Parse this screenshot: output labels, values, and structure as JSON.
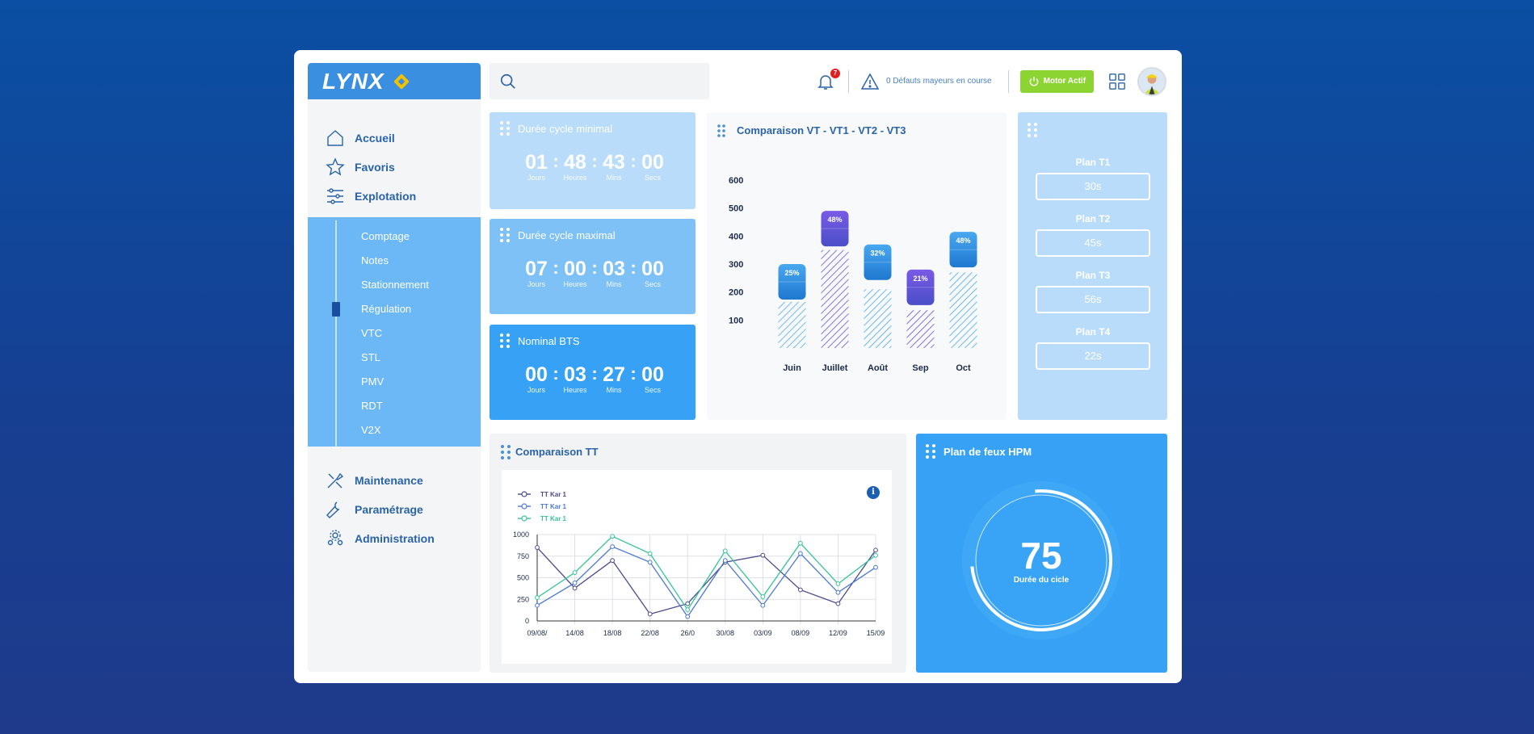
{
  "brand": {
    "name": "LYNX"
  },
  "sidebar": {
    "main": [
      {
        "label": "Accueil",
        "icon": "home-icon"
      },
      {
        "label": "Favoris",
        "icon": "star-icon"
      },
      {
        "label": "Explotation",
        "icon": "sliders-icon"
      }
    ],
    "sub": [
      "Comptage",
      "Notes",
      "Stationnement",
      "Régulation",
      "VTC",
      "STL",
      "PMV",
      "RDT",
      "V2X"
    ],
    "active_sub": "Régulation",
    "bottom": [
      {
        "label": "Maintenance",
        "icon": "tools-icon"
      },
      {
        "label": "Paramétrage",
        "icon": "wrench-icon"
      },
      {
        "label": "Administration",
        "icon": "gears-icon"
      }
    ]
  },
  "topbar": {
    "search_placeholder": "",
    "notification_count": "7",
    "alert_text": "0 Défauts mayeurs en course",
    "motor_label": "Motor Actif"
  },
  "timers": [
    {
      "title": "Durée cycle minimal",
      "values": [
        "01",
        "48",
        "43",
        "00"
      ]
    },
    {
      "title": "Durée cycle maximal",
      "values": [
        "07",
        "00",
        "03",
        "00"
      ]
    },
    {
      "title": "Nominal BTS",
      "values": [
        "00",
        "03",
        "27",
        "00"
      ]
    }
  ],
  "timer_units": [
    "Jours",
    "Heures",
    "Mins",
    "Secs"
  ],
  "plans": {
    "items": [
      {
        "label": "Plan T1",
        "value": "30s"
      },
      {
        "label": "Plan T2",
        "value": "45s"
      },
      {
        "label": "Plan T3",
        "value": "56s"
      },
      {
        "label": "Plan T4",
        "value": "22s"
      }
    ]
  },
  "gauge": {
    "title": "Plan de feux HPM",
    "value": "75",
    "label": "Durée du cicle"
  },
  "colors": {
    "accent": "#37a2f5",
    "motor": "#8bd431",
    "nav": "#2b63a8"
  },
  "chart_data": [
    {
      "type": "bar",
      "title": "Comparaison VT - VT1 - VT2 -  VT3",
      "categories": [
        "Juin",
        "Juillet",
        "Août",
        "Sep",
        "Oct"
      ],
      "values": [
        165,
        350,
        210,
        135,
        270
      ],
      "badges": [
        "25%",
        "48%",
        "32%",
        "21%",
        "48%"
      ],
      "badge_top": [
        300,
        490,
        370,
        280,
        415
      ],
      "badge_style": [
        "blue",
        "purple",
        "blue",
        "purple",
        "blue"
      ],
      "yticks": [
        100,
        200,
        300,
        400,
        500,
        600
      ],
      "ylim": [
        0,
        600
      ]
    },
    {
      "type": "line",
      "title": "Comparaison TT",
      "x": [
        "09/08/",
        "14/08",
        "18/08",
        "22/08",
        "26/0",
        "30/08",
        "03/09",
        "08/09",
        "12/09",
        "15/09"
      ],
      "series": [
        {
          "name": "TT Kar 1",
          "color": "#4a4a8c",
          "values": [
            850,
            380,
            700,
            80,
            200,
            680,
            760,
            360,
            200,
            820
          ]
        },
        {
          "name": "TT Kar 1",
          "color": "#4b78d2",
          "values": [
            180,
            440,
            860,
            680,
            50,
            700,
            180,
            780,
            330,
            620
          ]
        },
        {
          "name": "TT Kar 1",
          "color": "#36c29a",
          "values": [
            270,
            560,
            980,
            780,
            130,
            810,
            280,
            900,
            430,
            760
          ]
        }
      ],
      "yticks": [
        0,
        250,
        500,
        750,
        1000
      ],
      "ylim": [
        0,
        1000
      ]
    }
  ]
}
